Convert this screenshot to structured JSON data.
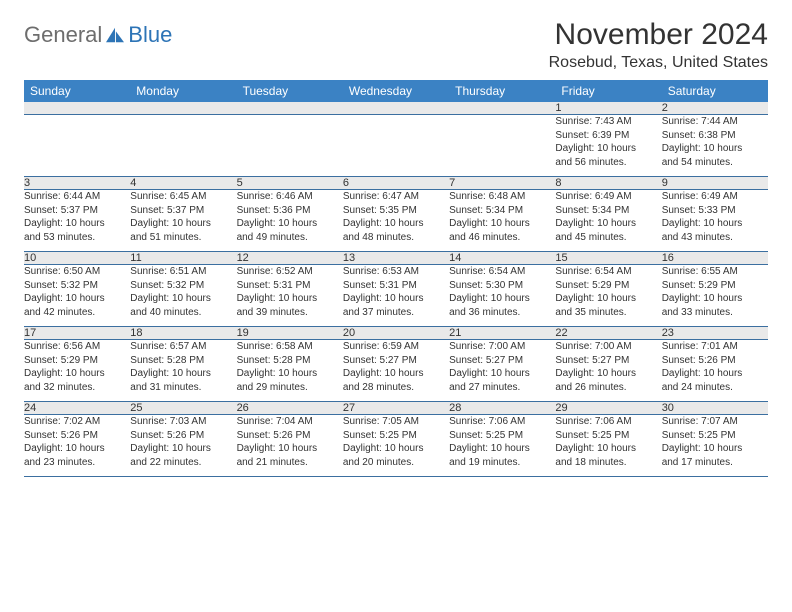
{
  "logo": {
    "text_gray": "General",
    "text_blue": "Blue",
    "color_gray": "#6d6d6d",
    "color_blue": "#2d74b6"
  },
  "title": "November 2024",
  "location": "Rosebud, Texas, United States",
  "colors": {
    "header_bg": "#3b82c4",
    "header_text": "#ffffff",
    "daynum_bg": "#e9e9e9",
    "row_border": "#3b6fa0",
    "body_text": "#333333",
    "background": "#ffffff"
  },
  "typography": {
    "title_fontsize": 30,
    "location_fontsize": 16,
    "header_fontsize": 12,
    "daynum_fontsize": 11,
    "cell_fontsize": 10
  },
  "day_headers": [
    "Sunday",
    "Monday",
    "Tuesday",
    "Wednesday",
    "Thursday",
    "Friday",
    "Saturday"
  ],
  "weeks": [
    {
      "nums": [
        "",
        "",
        "",
        "",
        "",
        "1",
        "2"
      ],
      "cells": [
        {},
        {},
        {},
        {},
        {},
        {
          "sunrise": "Sunrise: 7:43 AM",
          "sunset": "Sunset: 6:39 PM",
          "day1": "Daylight: 10 hours",
          "day2": "and 56 minutes."
        },
        {
          "sunrise": "Sunrise: 7:44 AM",
          "sunset": "Sunset: 6:38 PM",
          "day1": "Daylight: 10 hours",
          "day2": "and 54 minutes."
        }
      ]
    },
    {
      "nums": [
        "3",
        "4",
        "5",
        "6",
        "7",
        "8",
        "9"
      ],
      "cells": [
        {
          "sunrise": "Sunrise: 6:44 AM",
          "sunset": "Sunset: 5:37 PM",
          "day1": "Daylight: 10 hours",
          "day2": "and 53 minutes."
        },
        {
          "sunrise": "Sunrise: 6:45 AM",
          "sunset": "Sunset: 5:37 PM",
          "day1": "Daylight: 10 hours",
          "day2": "and 51 minutes."
        },
        {
          "sunrise": "Sunrise: 6:46 AM",
          "sunset": "Sunset: 5:36 PM",
          "day1": "Daylight: 10 hours",
          "day2": "and 49 minutes."
        },
        {
          "sunrise": "Sunrise: 6:47 AM",
          "sunset": "Sunset: 5:35 PM",
          "day1": "Daylight: 10 hours",
          "day2": "and 48 minutes."
        },
        {
          "sunrise": "Sunrise: 6:48 AM",
          "sunset": "Sunset: 5:34 PM",
          "day1": "Daylight: 10 hours",
          "day2": "and 46 minutes."
        },
        {
          "sunrise": "Sunrise: 6:49 AM",
          "sunset": "Sunset: 5:34 PM",
          "day1": "Daylight: 10 hours",
          "day2": "and 45 minutes."
        },
        {
          "sunrise": "Sunrise: 6:49 AM",
          "sunset": "Sunset: 5:33 PM",
          "day1": "Daylight: 10 hours",
          "day2": "and 43 minutes."
        }
      ]
    },
    {
      "nums": [
        "10",
        "11",
        "12",
        "13",
        "14",
        "15",
        "16"
      ],
      "cells": [
        {
          "sunrise": "Sunrise: 6:50 AM",
          "sunset": "Sunset: 5:32 PM",
          "day1": "Daylight: 10 hours",
          "day2": "and 42 minutes."
        },
        {
          "sunrise": "Sunrise: 6:51 AM",
          "sunset": "Sunset: 5:32 PM",
          "day1": "Daylight: 10 hours",
          "day2": "and 40 minutes."
        },
        {
          "sunrise": "Sunrise: 6:52 AM",
          "sunset": "Sunset: 5:31 PM",
          "day1": "Daylight: 10 hours",
          "day2": "and 39 minutes."
        },
        {
          "sunrise": "Sunrise: 6:53 AM",
          "sunset": "Sunset: 5:31 PM",
          "day1": "Daylight: 10 hours",
          "day2": "and 37 minutes."
        },
        {
          "sunrise": "Sunrise: 6:54 AM",
          "sunset": "Sunset: 5:30 PM",
          "day1": "Daylight: 10 hours",
          "day2": "and 36 minutes."
        },
        {
          "sunrise": "Sunrise: 6:54 AM",
          "sunset": "Sunset: 5:29 PM",
          "day1": "Daylight: 10 hours",
          "day2": "and 35 minutes."
        },
        {
          "sunrise": "Sunrise: 6:55 AM",
          "sunset": "Sunset: 5:29 PM",
          "day1": "Daylight: 10 hours",
          "day2": "and 33 minutes."
        }
      ]
    },
    {
      "nums": [
        "17",
        "18",
        "19",
        "20",
        "21",
        "22",
        "23"
      ],
      "cells": [
        {
          "sunrise": "Sunrise: 6:56 AM",
          "sunset": "Sunset: 5:29 PM",
          "day1": "Daylight: 10 hours",
          "day2": "and 32 minutes."
        },
        {
          "sunrise": "Sunrise: 6:57 AM",
          "sunset": "Sunset: 5:28 PM",
          "day1": "Daylight: 10 hours",
          "day2": "and 31 minutes."
        },
        {
          "sunrise": "Sunrise: 6:58 AM",
          "sunset": "Sunset: 5:28 PM",
          "day1": "Daylight: 10 hours",
          "day2": "and 29 minutes."
        },
        {
          "sunrise": "Sunrise: 6:59 AM",
          "sunset": "Sunset: 5:27 PM",
          "day1": "Daylight: 10 hours",
          "day2": "and 28 minutes."
        },
        {
          "sunrise": "Sunrise: 7:00 AM",
          "sunset": "Sunset: 5:27 PM",
          "day1": "Daylight: 10 hours",
          "day2": "and 27 minutes."
        },
        {
          "sunrise": "Sunrise: 7:00 AM",
          "sunset": "Sunset: 5:27 PM",
          "day1": "Daylight: 10 hours",
          "day2": "and 26 minutes."
        },
        {
          "sunrise": "Sunrise: 7:01 AM",
          "sunset": "Sunset: 5:26 PM",
          "day1": "Daylight: 10 hours",
          "day2": "and 24 minutes."
        }
      ]
    },
    {
      "nums": [
        "24",
        "25",
        "26",
        "27",
        "28",
        "29",
        "30"
      ],
      "cells": [
        {
          "sunrise": "Sunrise: 7:02 AM",
          "sunset": "Sunset: 5:26 PM",
          "day1": "Daylight: 10 hours",
          "day2": "and 23 minutes."
        },
        {
          "sunrise": "Sunrise: 7:03 AM",
          "sunset": "Sunset: 5:26 PM",
          "day1": "Daylight: 10 hours",
          "day2": "and 22 minutes."
        },
        {
          "sunrise": "Sunrise: 7:04 AM",
          "sunset": "Sunset: 5:26 PM",
          "day1": "Daylight: 10 hours",
          "day2": "and 21 minutes."
        },
        {
          "sunrise": "Sunrise: 7:05 AM",
          "sunset": "Sunset: 5:25 PM",
          "day1": "Daylight: 10 hours",
          "day2": "and 20 minutes."
        },
        {
          "sunrise": "Sunrise: 7:06 AM",
          "sunset": "Sunset: 5:25 PM",
          "day1": "Daylight: 10 hours",
          "day2": "and 19 minutes."
        },
        {
          "sunrise": "Sunrise: 7:06 AM",
          "sunset": "Sunset: 5:25 PM",
          "day1": "Daylight: 10 hours",
          "day2": "and 18 minutes."
        },
        {
          "sunrise": "Sunrise: 7:07 AM",
          "sunset": "Sunset: 5:25 PM",
          "day1": "Daylight: 10 hours",
          "day2": "and 17 minutes."
        }
      ]
    }
  ]
}
